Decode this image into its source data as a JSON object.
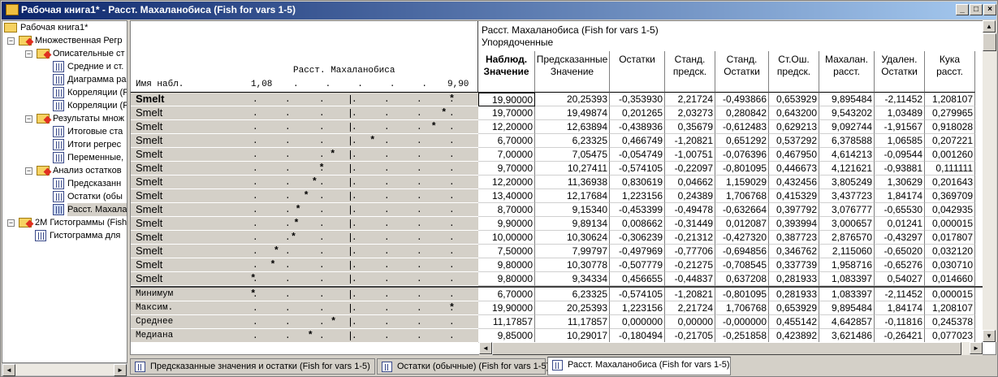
{
  "window": {
    "title": "Рабочая книга1* - Расст. Махаланобиса (Fish for vars 1-5)",
    "minimize": "_",
    "maximize": "□",
    "close": "×"
  },
  "tree": {
    "root": "Рабочая книга1*",
    "items": [
      {
        "label": "Множественная Регр",
        "level": 1,
        "type": "folder"
      },
      {
        "label": "Описательные ст",
        "level": 2,
        "type": "folder"
      },
      {
        "label": "Средние и ст.",
        "level": 3,
        "type": "sheet"
      },
      {
        "label": "Диаграмма ра",
        "level": 3,
        "type": "graph"
      },
      {
        "label": "Корреляции (F",
        "level": 3,
        "type": "sheet"
      },
      {
        "label": "Корреляции (F",
        "level": 3,
        "type": "graph"
      },
      {
        "label": "Результаты множ",
        "level": 2,
        "type": "folder"
      },
      {
        "label": "Итоговые ста",
        "level": 3,
        "type": "sheet"
      },
      {
        "label": "Итоги регрес",
        "level": 3,
        "type": "sheet"
      },
      {
        "label": "Переменные,",
        "level": 3,
        "type": "sheet"
      },
      {
        "label": "Анализ остатков",
        "level": 2,
        "type": "folder"
      },
      {
        "label": "Предсказанн",
        "level": 3,
        "type": "sheet"
      },
      {
        "label": "Остатки (обы",
        "level": 3,
        "type": "sheet"
      },
      {
        "label": "Расст. Махала",
        "level": 3,
        "type": "sheet",
        "selected": true
      },
      {
        "label": "2М Гистограммы (Fish",
        "level": 1,
        "type": "folder"
      },
      {
        "label": "Гистограмма для",
        "level": 2,
        "type": "graph"
      }
    ]
  },
  "plot_header": {
    "title": "Расст. Махаланобиса",
    "row_label": "Имя набл.",
    "axis_min": "1,08",
    "axis_max": "9,90"
  },
  "table": {
    "title": "Расст. Махаланобиса (Fish for vars 1-5)",
    "subtitle": "Упорядоченные",
    "columns": [
      "Наблюд. Значение",
      "Предсказанные Значение",
      "Остатки",
      "Станд. предск.",
      "Станд. Остатки",
      "Ст.Ош. предск.",
      "Махалан. расст.",
      "Удален. Остатки",
      "Кука расст."
    ],
    "rows": [
      {
        "name": "Smelt",
        "plot": "*",
        "values": [
          "19,90000",
          "20,25393",
          "-0,353930",
          "2,21724",
          "-0,493866",
          "0,653929",
          "9,895484",
          "-2,11452",
          "1,208107"
        ]
      },
      {
        "name": "Smelt",
        "plot": "*",
        "values": [
          "19,70000",
          "19,49874",
          "0,201265",
          "2,03273",
          "0,280842",
          "0,643200",
          "9,543202",
          "1,03489",
          "0,279965"
        ]
      },
      {
        "name": "Smelt",
        "plot": "*",
        "values": [
          "12,20000",
          "12,63894",
          "-0,438936",
          "0,35679",
          "-0,612483",
          "0,629213",
          "9,092744",
          "-1,91567",
          "0,918028"
        ]
      },
      {
        "name": "Smelt",
        "plot": "*",
        "values": [
          "6,70000",
          "6,23325",
          "0,466749",
          "-1,20821",
          "0,651292",
          "0,537292",
          "6,378588",
          "1,06585",
          "0,207221"
        ]
      },
      {
        "name": "Smelt",
        "plot": "*",
        "values": [
          "7,00000",
          "7,05475",
          "-0,054749",
          "-1,00751",
          "-0,076396",
          "0,467950",
          "4,614213",
          "-0,09544",
          "0,001260"
        ]
      },
      {
        "name": "Smelt",
        "plot": "*",
        "values": [
          "9,70000",
          "10,27411",
          "-0,574105",
          "-0,22097",
          "-0,801095",
          "0,446673",
          "4,121621",
          "-0,93881",
          "0,111111"
        ]
      },
      {
        "name": "Smelt",
        "plot": "*",
        "values": [
          "12,20000",
          "11,36938",
          "0,830619",
          "0,04662",
          "1,159029",
          "0,432456",
          "3,805249",
          "1,30629",
          "0,201643"
        ]
      },
      {
        "name": "Smelt",
        "plot": "*",
        "values": [
          "13,40000",
          "12,17684",
          "1,223156",
          "0,24389",
          "1,706768",
          "0,415329",
          "3,437723",
          "1,84174",
          "0,369709"
        ]
      },
      {
        "name": "Smelt",
        "plot": "*",
        "values": [
          "8,70000",
          "9,15340",
          "-0,453399",
          "-0,49478",
          "-0,632664",
          "0,397792",
          "3,076777",
          "-0,65530",
          "0,042935"
        ]
      },
      {
        "name": "Smelt",
        "plot": "*",
        "values": [
          "9,90000",
          "9,89134",
          "0,008662",
          "-0,31449",
          "0,012087",
          "0,393994",
          "3,000657",
          "0,01241",
          "0,000015"
        ]
      },
      {
        "name": "Smelt",
        "plot": "*",
        "values": [
          "10,00000",
          "10,30624",
          "-0,306239",
          "-0,21312",
          "-0,427320",
          "0,387723",
          "2,876570",
          "-0,43297",
          "0,017807"
        ]
      },
      {
        "name": "Smelt",
        "plot": "*",
        "values": [
          "7,50000",
          "7,99797",
          "-0,497969",
          "-0,77706",
          "-0,694856",
          "0,346762",
          "2,115060",
          "-0,65020",
          "0,032120"
        ]
      },
      {
        "name": "Smelt",
        "plot": "*",
        "values": [
          "9,80000",
          "10,30778",
          "-0,507779",
          "-0,21275",
          "-0,708545",
          "0,337739",
          "1,958716",
          "-0,65276",
          "0,030710"
        ]
      },
      {
        "name": "Smelt",
        "plot": "*",
        "values": [
          "9,80000",
          "9,34334",
          "0,456655",
          "-0,44837",
          "0,637208",
          "0,281933",
          "1,083397",
          "0,54027",
          "0,014660"
        ]
      }
    ],
    "stats": [
      {
        "name": "Минимум",
        "plot": "*",
        "values": [
          "6,70000",
          "6,23325",
          "-0,574105",
          "-1,20821",
          "-0,801095",
          "0,281933",
          "1,083397",
          "-2,11452",
          "0,000015"
        ]
      },
      {
        "name": "Максим.",
        "plot": "*",
        "values": [
          "19,90000",
          "20,25393",
          "1,223156",
          "2,21724",
          "1,706768",
          "0,653929",
          "9,895484",
          "1,84174",
          "1,208107"
        ]
      },
      {
        "name": "Среднее",
        "plot": "*",
        "values": [
          "11,17857",
          "11,17857",
          "0,000000",
          "0,00000",
          "-0,000000",
          "0,455142",
          "4,642857",
          "-0,11816",
          "0,245378"
        ]
      },
      {
        "name": "Медиана",
        "plot": "*",
        "values": [
          "9,85000",
          "10,29017",
          "-0,180494",
          "-0,21705",
          "-0,251858",
          "0,423892",
          "3,621486",
          "-0,26421",
          "0,077023"
        ]
      }
    ]
  },
  "tabs": [
    {
      "label": "Предсказанные значения и остатки (Fish for vars 1-5)"
    },
    {
      "label": "Остатки (обычные) (Fish for vars 1-5)"
    },
    {
      "label": "Расст. Махаланобиса (Fish for vars 1-5)",
      "active": true
    }
  ],
  "scroll": {
    "up": "▲",
    "down": "▼",
    "left": "◄",
    "right": "►"
  }
}
